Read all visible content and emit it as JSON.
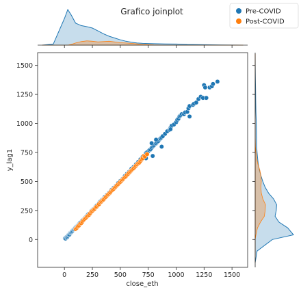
{
  "chart_data": {
    "type": "scatter",
    "title": "Grafico joinplot",
    "xlabel": "close_eth",
    "ylabel": "y_lag1",
    "xlim": [
      -240,
      1640
    ],
    "ylim": [
      -240,
      1610
    ],
    "xticks": [
      "0",
      "250",
      "500",
      "750",
      "1000",
      "1250",
      "1500"
    ],
    "yticks": [
      "0",
      "250",
      "500",
      "750",
      "1000",
      "1250",
      "1500"
    ],
    "grid": false,
    "legend_position": "top-right",
    "colors": {
      "pre": "#1f77b4",
      "post": "#ff7f0e"
    },
    "series": [
      {
        "name": "Pre-COVID",
        "color": "#1f77b4",
        "points": [
          [
            5,
            10
          ],
          [
            10,
            8
          ],
          [
            15,
            18
          ],
          [
            20,
            22
          ],
          [
            25,
            20
          ],
          [
            30,
            30
          ],
          [
            35,
            38
          ],
          [
            40,
            40
          ],
          [
            45,
            42
          ],
          [
            50,
            55
          ],
          [
            55,
            58
          ],
          [
            60,
            60
          ],
          [
            65,
            66
          ],
          [
            70,
            70
          ],
          [
            75,
            78
          ],
          [
            80,
            84
          ],
          [
            85,
            88
          ],
          [
            90,
            90
          ],
          [
            95,
            96
          ],
          [
            100,
            104
          ],
          [
            105,
            108
          ],
          [
            110,
            114
          ],
          [
            115,
            118
          ],
          [
            120,
            122
          ],
          [
            125,
            124
          ],
          [
            130,
            132
          ],
          [
            135,
            138
          ],
          [
            140,
            144
          ],
          [
            150,
            150
          ],
          [
            160,
            162
          ],
          [
            170,
            172
          ],
          [
            180,
            178
          ],
          [
            190,
            192
          ],
          [
            200,
            202
          ],
          [
            210,
            214
          ],
          [
            220,
            222
          ],
          [
            230,
            228
          ],
          [
            240,
            244
          ],
          [
            250,
            252
          ],
          [
            260,
            262
          ],
          [
            270,
            268
          ],
          [
            280,
            284
          ],
          [
            290,
            294
          ],
          [
            300,
            300
          ],
          [
            310,
            312
          ],
          [
            320,
            326
          ],
          [
            330,
            334
          ],
          [
            340,
            344
          ],
          [
            350,
            348
          ],
          [
            360,
            366
          ],
          [
            380,
            384
          ],
          [
            400,
            402
          ],
          [
            420,
            426
          ],
          [
            440,
            444
          ],
          [
            460,
            462
          ],
          [
            480,
            486
          ],
          [
            500,
            504
          ],
          [
            520,
            522
          ],
          [
            540,
            546
          ],
          [
            560,
            566
          ],
          [
            580,
            584
          ],
          [
            600,
            610
          ],
          [
            620,
            626
          ],
          [
            640,
            648
          ],
          [
            660,
            668
          ],
          [
            680,
            690
          ],
          [
            700,
            712
          ],
          [
            720,
            726
          ],
          [
            730,
            745
          ],
          [
            740,
            752
          ],
          [
            750,
            758
          ],
          [
            760,
            770
          ],
          [
            770,
            775
          ],
          [
            780,
            790
          ],
          [
            790,
            800
          ],
          [
            800,
            810
          ],
          [
            810,
            822
          ],
          [
            820,
            828
          ],
          [
            830,
            838
          ],
          [
            840,
            848
          ],
          [
            850,
            862
          ],
          [
            860,
            870
          ],
          [
            870,
            880
          ],
          [
            880,
            890
          ],
          [
            900,
            910
          ],
          [
            920,
            932
          ],
          [
            940,
            944
          ],
          [
            950,
            962
          ],
          [
            960,
            980
          ],
          [
            980,
            990
          ],
          [
            1000,
            1010
          ],
          [
            1010,
            1030
          ],
          [
            1020,
            1040
          ],
          [
            1030,
            1060
          ],
          [
            1040,
            1070
          ],
          [
            1050,
            1080
          ],
          [
            1070,
            1080
          ],
          [
            1080,
            1095
          ],
          [
            1100,
            1100
          ],
          [
            1110,
            1130
          ],
          [
            1120,
            1150
          ],
          [
            1150,
            1160
          ],
          [
            1160,
            1170
          ],
          [
            1180,
            1180
          ],
          [
            1200,
            1210
          ],
          [
            1220,
            1230
          ],
          [
            1240,
            1220
          ],
          [
            1250,
            1330
          ],
          [
            1260,
            1310
          ],
          [
            1270,
            1220
          ],
          [
            1300,
            1310
          ],
          [
            1320,
            1320
          ],
          [
            1330,
            1340
          ],
          [
            1370,
            1360
          ],
          [
            730,
            700
          ],
          [
            790,
            720
          ],
          [
            870,
            800
          ],
          [
            950,
            950
          ],
          [
            1120,
            1060
          ],
          [
            780,
            830
          ],
          [
            820,
            860
          ]
        ]
      },
      {
        "name": "Post-COVID",
        "color": "#ff7f0e",
        "points": [
          [
            100,
            90
          ],
          [
            110,
            100
          ],
          [
            120,
            112
          ],
          [
            130,
            120
          ],
          [
            140,
            134
          ],
          [
            150,
            140
          ],
          [
            160,
            152
          ],
          [
            170,
            166
          ],
          [
            180,
            176
          ],
          [
            190,
            184
          ],
          [
            200,
            196
          ],
          [
            210,
            204
          ],
          [
            220,
            212
          ],
          [
            230,
            224
          ],
          [
            240,
            238
          ],
          [
            250,
            246
          ],
          [
            260,
            256
          ],
          [
            270,
            264
          ],
          [
            280,
            278
          ],
          [
            290,
            284
          ],
          [
            300,
            296
          ],
          [
            310,
            304
          ],
          [
            320,
            318
          ],
          [
            330,
            326
          ],
          [
            340,
            336
          ],
          [
            350,
            344
          ],
          [
            360,
            356
          ],
          [
            370,
            366
          ],
          [
            380,
            376
          ],
          [
            390,
            386
          ],
          [
            400,
            396
          ],
          [
            410,
            404
          ],
          [
            420,
            418
          ],
          [
            430,
            426
          ],
          [
            440,
            436
          ],
          [
            450,
            446
          ],
          [
            460,
            456
          ],
          [
            470,
            466
          ],
          [
            480,
            476
          ],
          [
            490,
            486
          ],
          [
            500,
            496
          ],
          [
            510,
            506
          ],
          [
            520,
            516
          ],
          [
            530,
            526
          ],
          [
            540,
            536
          ],
          [
            550,
            544
          ],
          [
            560,
            556
          ],
          [
            570,
            566
          ],
          [
            580,
            576
          ],
          [
            590,
            586
          ],
          [
            600,
            596
          ],
          [
            610,
            606
          ],
          [
            620,
            614
          ],
          [
            630,
            626
          ],
          [
            640,
            636
          ],
          [
            650,
            646
          ],
          [
            660,
            656
          ],
          [
            670,
            662
          ],
          [
            680,
            676
          ],
          [
            690,
            688
          ],
          [
            700,
            700
          ],
          [
            710,
            720
          ],
          [
            720,
            715
          ],
          [
            740,
            735
          ]
        ]
      }
    ],
    "marginal_x": {
      "x": [
        -200,
        -100,
        0,
        30,
        60,
        100,
        150,
        200,
        250,
        300,
        350,
        400,
        450,
        500,
        550,
        600,
        650,
        700,
        800,
        900,
        1000,
        1100,
        1200,
        1300,
        1400,
        1500,
        1600
      ],
      "pre": [
        0,
        0.03,
        0.75,
        1.0,
        0.85,
        0.62,
        0.55,
        0.52,
        0.48,
        0.4,
        0.32,
        0.25,
        0.2,
        0.15,
        0.11,
        0.08,
        0.06,
        0.05,
        0.04,
        0.035,
        0.03,
        0.02,
        0.015,
        0.01,
        0.006,
        0.002,
        0
      ],
      "post": [
        0,
        0,
        0,
        0,
        0.02,
        0.06,
        0.1,
        0.12,
        0.11,
        0.09,
        0.1,
        0.11,
        0.09,
        0.07,
        0.06,
        0.05,
        0.035,
        0.02,
        0.005,
        0,
        0,
        0,
        0,
        0,
        0,
        0,
        0
      ]
    },
    "marginal_y": {
      "y": [
        -200,
        -100,
        0,
        40,
        100,
        150,
        200,
        250,
        300,
        350,
        400,
        450,
        500,
        550,
        600,
        650,
        700,
        750,
        800,
        900,
        1000,
        1100,
        1200,
        1300,
        1400,
        1500,
        1600
      ],
      "pre": [
        0,
        0.05,
        0.45,
        1.0,
        0.85,
        0.62,
        0.52,
        0.55,
        0.56,
        0.48,
        0.35,
        0.26,
        0.2,
        0.15,
        0.11,
        0.08,
        0.065,
        0.05,
        0.04,
        0.035,
        0.03,
        0.02,
        0.015,
        0.01,
        0.006,
        0.002,
        0
      ],
      "post": [
        0,
        0,
        0,
        0.02,
        0.06,
        0.14,
        0.24,
        0.26,
        0.27,
        0.2,
        0.16,
        0.15,
        0.16,
        0.15,
        0.12,
        0.07,
        0.04,
        0.02,
        0.008,
        0,
        0,
        0,
        0,
        0,
        0,
        0,
        0
      ]
    }
  }
}
